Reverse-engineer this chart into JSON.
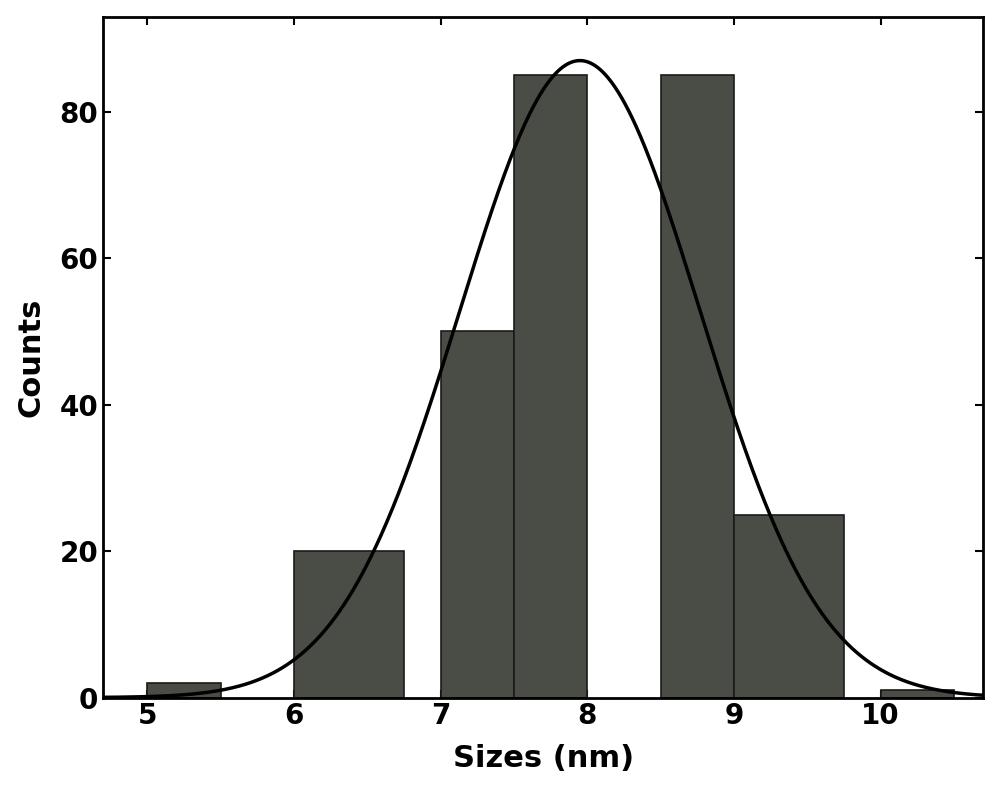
{
  "bar_lefts": [
    5.0,
    6.0,
    7.0,
    7.5,
    8.5,
    9.0,
    10.0
  ],
  "bar_widths": [
    0.5,
    0.75,
    0.5,
    0.5,
    0.5,
    0.75,
    0.5
  ],
  "bar_heights": [
    2,
    20,
    50,
    85,
    85,
    25,
    1
  ],
  "bar_color": "#4a4d45",
  "bar_edgecolor": "#1a1a1a",
  "bar_linewidth": 1.2,
  "curve_mean": 7.95,
  "curve_std": 0.82,
  "curve_peak": 87.0,
  "xlim": [
    4.7,
    10.7
  ],
  "ylim": [
    0,
    93
  ],
  "xticks": [
    5,
    6,
    7,
    8,
    9,
    10
  ],
  "yticks": [
    0,
    20,
    40,
    60,
    80
  ],
  "xlabel": "Sizes (nm)",
  "ylabel": "Counts",
  "xlabel_fontsize": 22,
  "ylabel_fontsize": 22,
  "tick_fontsize": 20,
  "tick_fontweight": "bold",
  "label_fontweight": "bold",
  "spine_linewidth": 2.0,
  "curve_linewidth": 2.5,
  "background_color": "#ffffff"
}
